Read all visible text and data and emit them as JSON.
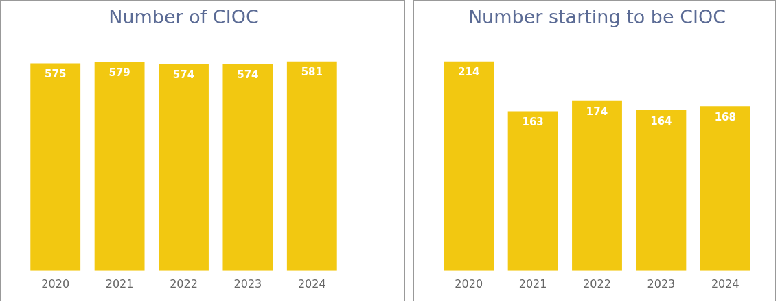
{
  "chart_data": [
    {
      "type": "bar",
      "title": "Number of CIOC",
      "categories": [
        "2020",
        "2021",
        "2022",
        "2023",
        "2024"
      ],
      "values": [
        575,
        579,
        574,
        574,
        581
      ],
      "color": "#f2c811",
      "data_labels": true,
      "tick_labels": "x",
      "grid": false,
      "legend": false
    },
    {
      "type": "bar",
      "title": "Number starting to be CIOC",
      "categories": [
        "2020",
        "2021",
        "2022",
        "2023",
        "2024"
      ],
      "values": [
        214,
        163,
        174,
        164,
        168
      ],
      "color": "#f2c811",
      "data_labels": true,
      "tick_labels": "x",
      "grid": false,
      "legend": false
    }
  ]
}
